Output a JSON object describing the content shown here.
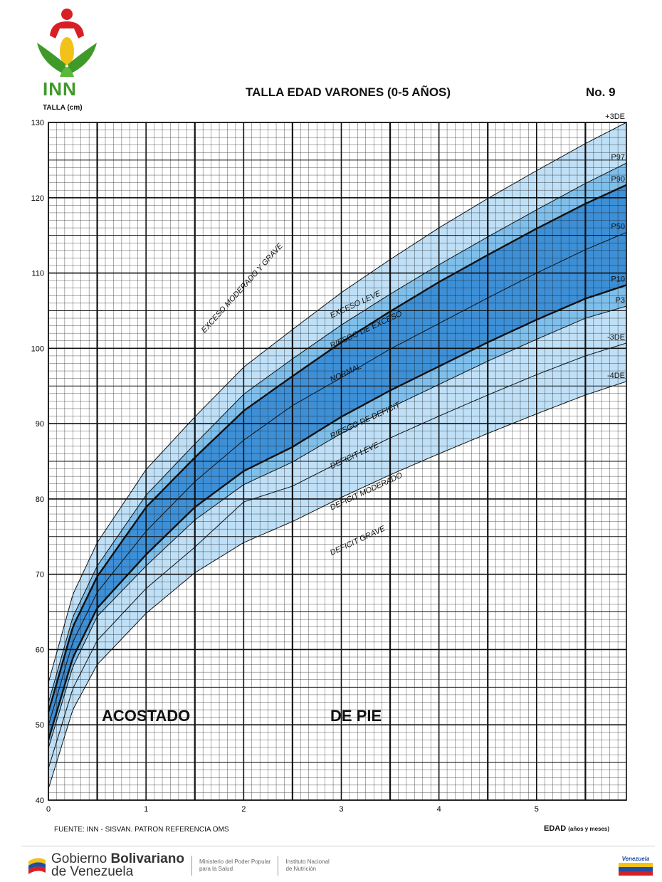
{
  "header": {
    "logo_text": "INN",
    "title": "TALLA EDAD VARONES (0-5 AÑOS)",
    "number": "No. 9",
    "y_axis_label": "TALLA (cm)"
  },
  "footer": {
    "source": "FUENTE: INN - SISVAN. PATRON REFERENCIA OMS",
    "x_axis_label": "EDAD",
    "x_axis_units": "(años y meses)",
    "gov_prefix": "Gobierno",
    "gov_bold": "Bolivariano",
    "gov_suffix": "de Venezuela",
    "ministry_line1": "Ministerio del Poder Popular",
    "ministry_line2": "para la Salud",
    "institute_line1": "Instituto Nacional",
    "institute_line2": "de Nutrición",
    "badge_text": "Venezuela"
  },
  "colors": {
    "band_light": "#bfe0f7",
    "band_mid": "#7fbfeb",
    "band_dark": "#3d8fd6",
    "grid": "#111111",
    "logo_red": "#d81f26",
    "logo_green": "#3f9a2a",
    "logo_yellow": "#f2c21b"
  },
  "chart_data": {
    "type": "line",
    "x_unit": "years",
    "xlim": [
      0,
      5.92
    ],
    "ylim": [
      40,
      130
    ],
    "x_ticks": [
      0,
      1,
      2,
      3,
      4,
      5
    ],
    "y_ticks": [
      40,
      50,
      60,
      70,
      80,
      90,
      100,
      110,
      120,
      130
    ],
    "grid": true,
    "x_sampling": [
      0,
      0.25,
      0.5,
      1,
      1.5,
      2,
      2.5,
      3,
      3.5,
      4,
      4.5,
      5,
      5.5,
      5.92
    ],
    "series": [
      {
        "name": "+3DE",
        "values": [
          55.6,
          67.3,
          74.2,
          83.9,
          90.9,
          97.5,
          102.5,
          107.4,
          111.8,
          116.0,
          119.9,
          123.6,
          127.2,
          130.0
        ],
        "curve": "thin",
        "label_printed": true
      },
      {
        "name": "P97",
        "values": [
          52.9,
          64.3,
          71.1,
          80.5,
          87.3,
          93.9,
          98.6,
          103.1,
          107.2,
          111.1,
          114.8,
          118.4,
          121.9,
          124.6
        ],
        "curve": "thin",
        "label_printed": true
      },
      {
        "name": "P90",
        "values": [
          51.7,
          63.0,
          69.7,
          78.9,
          85.5,
          91.7,
          96.3,
          100.8,
          104.9,
          108.8,
          112.4,
          115.9,
          119.2,
          121.7
        ],
        "curve": "thick",
        "label_printed": true
      },
      {
        "name": "P50",
        "values": [
          49.9,
          61.0,
          67.6,
          75.7,
          82.3,
          87.8,
          92.4,
          96.1,
          99.9,
          103.3,
          106.7,
          110.0,
          113.1,
          115.4
        ],
        "curve": "thin",
        "label_printed": true
      },
      {
        "name": "P10",
        "values": [
          48.0,
          58.9,
          65.5,
          72.6,
          78.9,
          83.7,
          86.9,
          90.9,
          94.4,
          97.6,
          100.8,
          103.8,
          106.6,
          108.4
        ],
        "curve": "thick",
        "label_printed": true
      },
      {
        "name": "P3",
        "values": [
          46.9,
          57.7,
          64.4,
          71.1,
          77.2,
          81.9,
          84.9,
          88.7,
          92.1,
          95.2,
          98.3,
          101.2,
          104.0,
          105.6
        ],
        "curve": "thin",
        "label_printed": true
      },
      {
        "name": "-3DE",
        "values": [
          44.2,
          54.8,
          61.2,
          68.1,
          73.6,
          79.6,
          81.7,
          85.0,
          88.1,
          91.0,
          93.8,
          96.5,
          99.0,
          100.7
        ],
        "curve": "thin",
        "label_printed": true
      },
      {
        "name": "-4DE",
        "values": [
          41.5,
          52.0,
          58.0,
          64.8,
          70.2,
          74.2,
          77.0,
          80.2,
          83.2,
          86.0,
          88.7,
          91.3,
          93.8,
          95.6
        ],
        "curve": "thin",
        "label_printed": true
      }
    ],
    "zones": [
      {
        "text": "EXCESO MODERADO Y GRAVE",
        "x": 1.6,
        "y": 102,
        "angle": -48
      },
      {
        "text": "EXCESO LEVE",
        "x": 2.9,
        "y": 104,
        "angle": -25
      },
      {
        "text": "RIESGO DE EXCESO",
        "x": 2.9,
        "y": 100,
        "angle": -25
      },
      {
        "text": "NORMAL",
        "x": 2.9,
        "y": 95.5,
        "angle": -25
      },
      {
        "text": "RIESGO DE DEFICIT",
        "x": 2.9,
        "y": 88,
        "angle": -25
      },
      {
        "text": "DEFICIT LEVE",
        "x": 2.9,
        "y": 84,
        "angle": -25
      },
      {
        "text": "DEFICIT MODERADO",
        "x": 2.9,
        "y": 78.5,
        "angle": -25
      },
      {
        "text": "DEFICIT GRAVE",
        "x": 2.9,
        "y": 72.5,
        "angle": -25
      }
    ],
    "sections": [
      {
        "text": "ACOSTADO",
        "x": 1.0,
        "y": 50.5
      },
      {
        "text": "DE PIE",
        "x": 3.15,
        "y": 50.5
      }
    ]
  }
}
